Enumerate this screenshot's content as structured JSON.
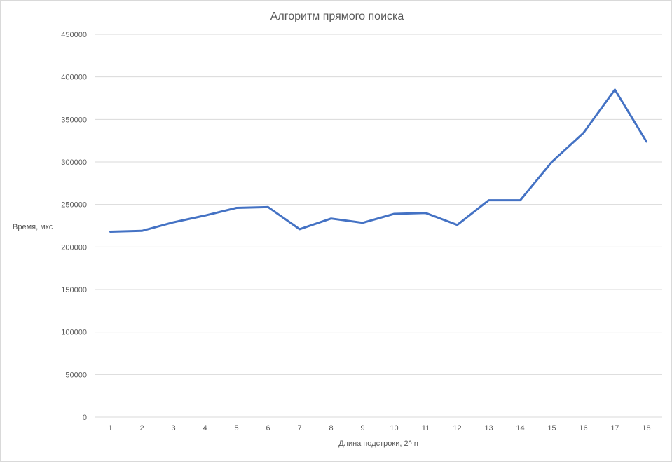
{
  "chart_data": {
    "type": "line",
    "title": "Алгоритм прямого поиска",
    "xlabel": "Длина подстроки, 2^ n",
    "ylabel": "Время, мкс",
    "ylim": [
      0,
      450000
    ],
    "yticks": [
      0,
      50000,
      100000,
      150000,
      200000,
      250000,
      300000,
      350000,
      400000,
      450000
    ],
    "categories": [
      "1",
      "2",
      "3",
      "4",
      "5",
      "6",
      "7",
      "8",
      "9",
      "10",
      "11",
      "12",
      "13",
      "14",
      "15",
      "16",
      "17",
      "18"
    ],
    "series": [
      {
        "color": "#4472c4",
        "values": [
          218000,
          219000,
          229000,
          237000,
          246000,
          247000,
          221000,
          233500,
          228500,
          239000,
          240000,
          226000,
          255000,
          255000,
          300000,
          334000,
          385000,
          324000
        ]
      }
    ],
    "grid": true,
    "legend": "none"
  }
}
